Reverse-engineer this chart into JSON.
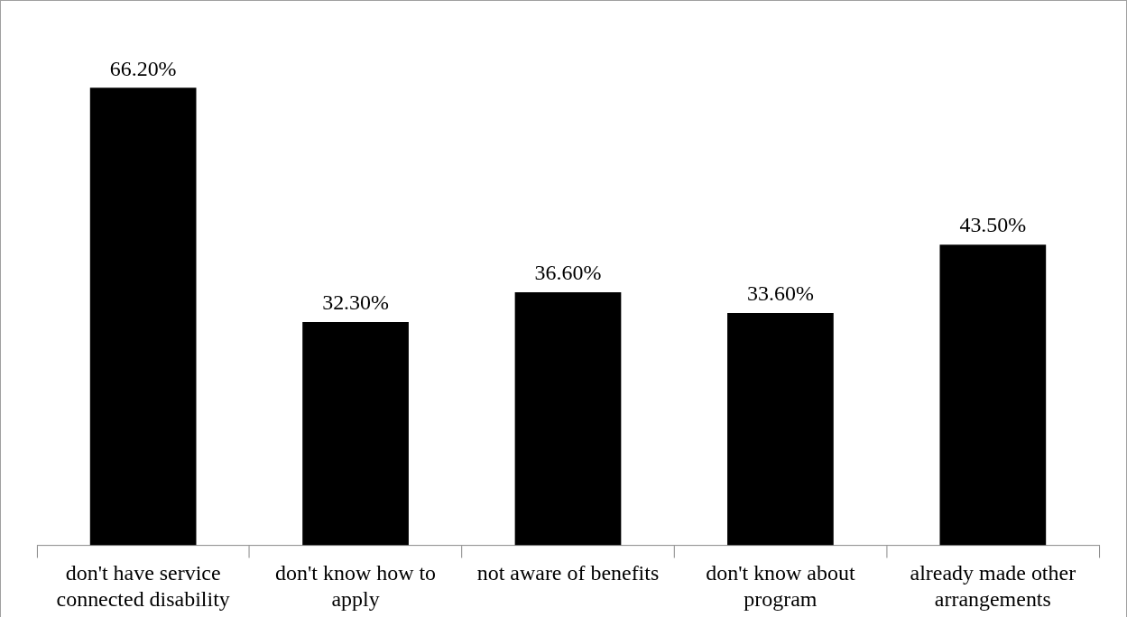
{
  "chart_data": {
    "type": "bar",
    "categories": [
      "don't have service connected disability",
      "don't know how to apply",
      "not aware of benefits",
      "don't know about program",
      "already made other arrangements"
    ],
    "values": [
      66.2,
      32.3,
      36.6,
      33.6,
      43.5
    ],
    "color": "#000000",
    "value_labels": [
      "66.20%",
      "32.30%",
      "36.60%",
      "33.60%",
      "43.50%"
    ],
    "grid": false,
    "legend": false
  }
}
